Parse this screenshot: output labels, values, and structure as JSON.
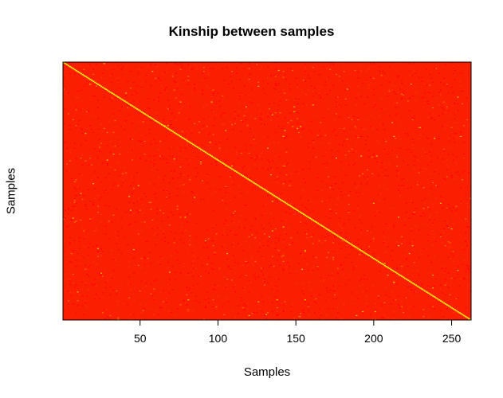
{
  "chart_data": {
    "type": "heatmap",
    "title": "Kinship between samples",
    "xlabel": "Samples",
    "ylabel": "Samples",
    "n_samples": 262,
    "xlim": [
      0.5,
      262.5
    ],
    "ylim": [
      0.5,
      262.5
    ],
    "x_ticks": [
      50,
      100,
      150,
      200,
      250
    ],
    "x_tick_labels": [
      "50",
      "100",
      "150",
      "200",
      "250"
    ],
    "y_ticks": [],
    "color_scale": [
      "#ff0000",
      "#ff3000",
      "#ff7000",
      "#ffc000",
      "#ffff00"
    ],
    "background_color": "#fa1f00",
    "diagonal_color": "#ffee00",
    "diagonal_value": 1.0,
    "grid": false,
    "legend": "none"
  }
}
